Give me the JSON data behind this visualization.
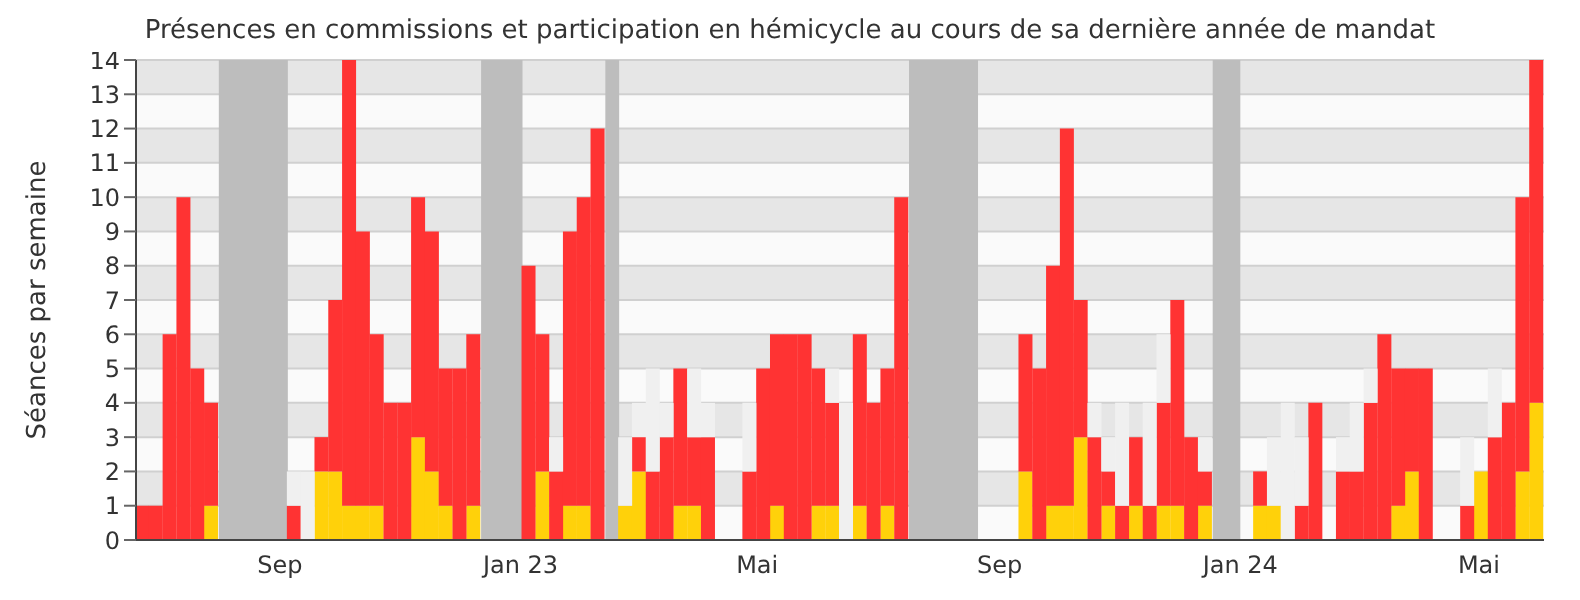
{
  "chart_data": {
    "type": "bar",
    "stacked": true,
    "title": "Présences en commissions et participation en hémicycle au cours de sa dernière année de mandat",
    "ylabel": "Séances par semaine",
    "x": [
      "2022-06-23",
      "2022-06-30",
      "2022-07-07",
      "2022-07-14",
      "2022-07-21",
      "2022-07-28",
      "2022-08-04",
      "2022-08-11",
      "2022-08-18",
      "2022-08-25",
      "2022-09-01",
      "2022-09-08",
      "2022-09-15",
      "2022-09-22",
      "2022-09-29",
      "2022-10-06",
      "2022-10-13",
      "2022-10-20",
      "2022-10-27",
      "2022-11-03",
      "2022-11-10",
      "2022-11-17",
      "2022-11-24",
      "2022-12-01",
      "2022-12-08",
      "2022-12-15",
      "2022-12-22",
      "2022-12-29",
      "2023-01-05",
      "2023-01-12",
      "2023-01-19",
      "2023-01-26",
      "2023-02-02",
      "2023-02-09",
      "2023-02-16",
      "2023-02-23",
      "2023-03-02",
      "2023-03-09",
      "2023-03-16",
      "2023-03-23",
      "2023-03-30",
      "2023-04-06",
      "2023-04-13",
      "2023-04-20",
      "2023-04-27",
      "2023-05-04",
      "2023-05-11",
      "2023-05-18",
      "2023-05-25",
      "2023-06-01",
      "2023-06-08",
      "2023-06-15",
      "2023-06-22",
      "2023-06-29",
      "2023-07-06",
      "2023-07-13",
      "2023-07-20",
      "2023-07-27",
      "2023-08-03",
      "2023-08-10",
      "2023-08-17",
      "2023-08-24",
      "2023-08-31",
      "2023-09-07",
      "2023-09-14",
      "2023-09-21",
      "2023-09-28",
      "2023-10-05",
      "2023-10-12",
      "2023-10-19",
      "2023-10-26",
      "2023-11-02",
      "2023-11-09",
      "2023-11-16",
      "2023-11-23",
      "2023-11-30",
      "2023-12-07",
      "2023-12-14",
      "2023-12-21",
      "2023-12-28",
      "2024-01-04",
      "2024-01-11",
      "2024-01-18",
      "2024-01-25",
      "2024-02-01",
      "2024-02-08",
      "2024-02-15",
      "2024-02-22",
      "2024-02-29",
      "2024-03-07",
      "2024-03-14",
      "2024-03-21",
      "2024-03-28",
      "2024-04-04",
      "2024-04-11",
      "2024-04-18",
      "2024-04-25",
      "2024-05-02",
      "2024-05-09",
      "2024-05-16",
      "2024-05-23",
      "2024-05-30"
    ],
    "series": [
      {
        "color": "#ffd10a",
        "values": [
          0,
          0,
          0,
          0,
          0,
          1,
          0,
          0,
          0,
          0,
          0,
          0,
          0,
          2,
          2,
          1,
          1,
          1,
          0,
          0,
          3,
          2,
          1,
          0,
          1,
          0,
          0,
          0,
          0,
          2,
          0,
          1,
          1,
          0,
          0,
          1,
          2,
          0,
          0,
          1,
          1,
          0,
          0,
          0,
          0,
          0,
          1,
          0,
          0,
          1,
          1,
          0,
          1,
          0,
          1,
          0,
          0,
          0,
          0,
          0,
          0,
          0,
          0,
          0,
          2,
          0,
          1,
          1,
          3,
          0,
          1,
          0,
          1,
          0,
          1,
          1,
          0,
          1,
          0,
          0,
          0,
          1,
          1,
          0,
          0,
          0,
          0,
          0,
          0,
          0,
          0,
          1,
          2,
          0,
          0,
          0,
          0,
          2,
          0,
          0,
          2,
          4
        ]
      },
      {
        "color": "#ff3333",
        "values": [
          1,
          1,
          6,
          10,
          5,
          3,
          0,
          0,
          0,
          0,
          0,
          1,
          0,
          1,
          5,
          13,
          8,
          5,
          4,
          4,
          7,
          7,
          4,
          5,
          5,
          0,
          0,
          0,
          8,
          4,
          2,
          8,
          9,
          12,
          0,
          0,
          1,
          2,
          3,
          4,
          2,
          3,
          0,
          0,
          2,
          5,
          5,
          6,
          6,
          4,
          3,
          0,
          5,
          4,
          4,
          10,
          0,
          0,
          0,
          0,
          0,
          0,
          0,
          0,
          4,
          5,
          7,
          11,
          4,
          3,
          1,
          1,
          2,
          1,
          3,
          6,
          3,
          1,
          0,
          0,
          0,
          1,
          0,
          0,
          1,
          4,
          0,
          2,
          2,
          4,
          6,
          4,
          3,
          5,
          0,
          0,
          1,
          0,
          3,
          4,
          8,
          10
        ]
      },
      {
        "color": "#f0f0f0",
        "values": [
          null,
          null,
          null,
          null,
          null,
          null,
          null,
          null,
          null,
          null,
          null,
          1,
          2,
          null,
          null,
          null,
          null,
          null,
          null,
          null,
          null,
          null,
          null,
          null,
          null,
          null,
          null,
          null,
          null,
          null,
          1,
          null,
          null,
          null,
          null,
          2,
          1,
          3,
          1,
          null,
          2,
          1,
          null,
          null,
          2,
          null,
          null,
          null,
          null,
          null,
          1,
          4,
          null,
          null,
          null,
          null,
          null,
          null,
          null,
          null,
          null,
          null,
          null,
          null,
          null,
          null,
          null,
          null,
          null,
          1,
          1,
          3,
          null,
          3,
          2,
          null,
          null,
          1,
          null,
          null,
          null,
          null,
          2,
          4,
          2,
          null,
          null,
          1,
          2,
          1,
          null,
          null,
          null,
          null,
          null,
          null,
          2,
          null,
          2,
          null,
          null,
          null
        ]
      }
    ],
    "bands": [
      {
        "axis": "x",
        "from": "2022-08-01",
        "to": "2022-09-05",
        "color": "#bdbdbd"
      },
      {
        "axis": "x",
        "from": "2022-12-12",
        "to": "2023-01-02",
        "color": "#bdbdbd"
      },
      {
        "axis": "x",
        "from": "2023-02-13",
        "to": "2023-02-20",
        "color": "#bdbdbd"
      },
      {
        "axis": "x",
        "from": "2023-07-17",
        "to": "2023-08-21",
        "color": "#bdbdbd"
      },
      {
        "axis": "x",
        "from": "2023-12-18",
        "to": "2024-01-01",
        "color": "#bdbdbd"
      }
    ],
    "xlim": [
      "2022-06-20",
      "2024-06-03"
    ],
    "xticks": [
      {
        "value": "2022-09-01",
        "label": "Sep"
      },
      {
        "value": "2023-01-01",
        "label": "Jan 23"
      },
      {
        "value": "2023-05-01",
        "label": "Mai"
      },
      {
        "value": "2023-09-01",
        "label": "Sep"
      },
      {
        "value": "2024-01-01",
        "label": "Jan 24"
      },
      {
        "value": "2024-05-01",
        "label": "Mai"
      }
    ],
    "ylim": [
      0,
      14
    ],
    "yticks": [
      0,
      1,
      2,
      3,
      4,
      5,
      6,
      7,
      8,
      9,
      10,
      11,
      12,
      13,
      14
    ],
    "grid": "y"
  }
}
